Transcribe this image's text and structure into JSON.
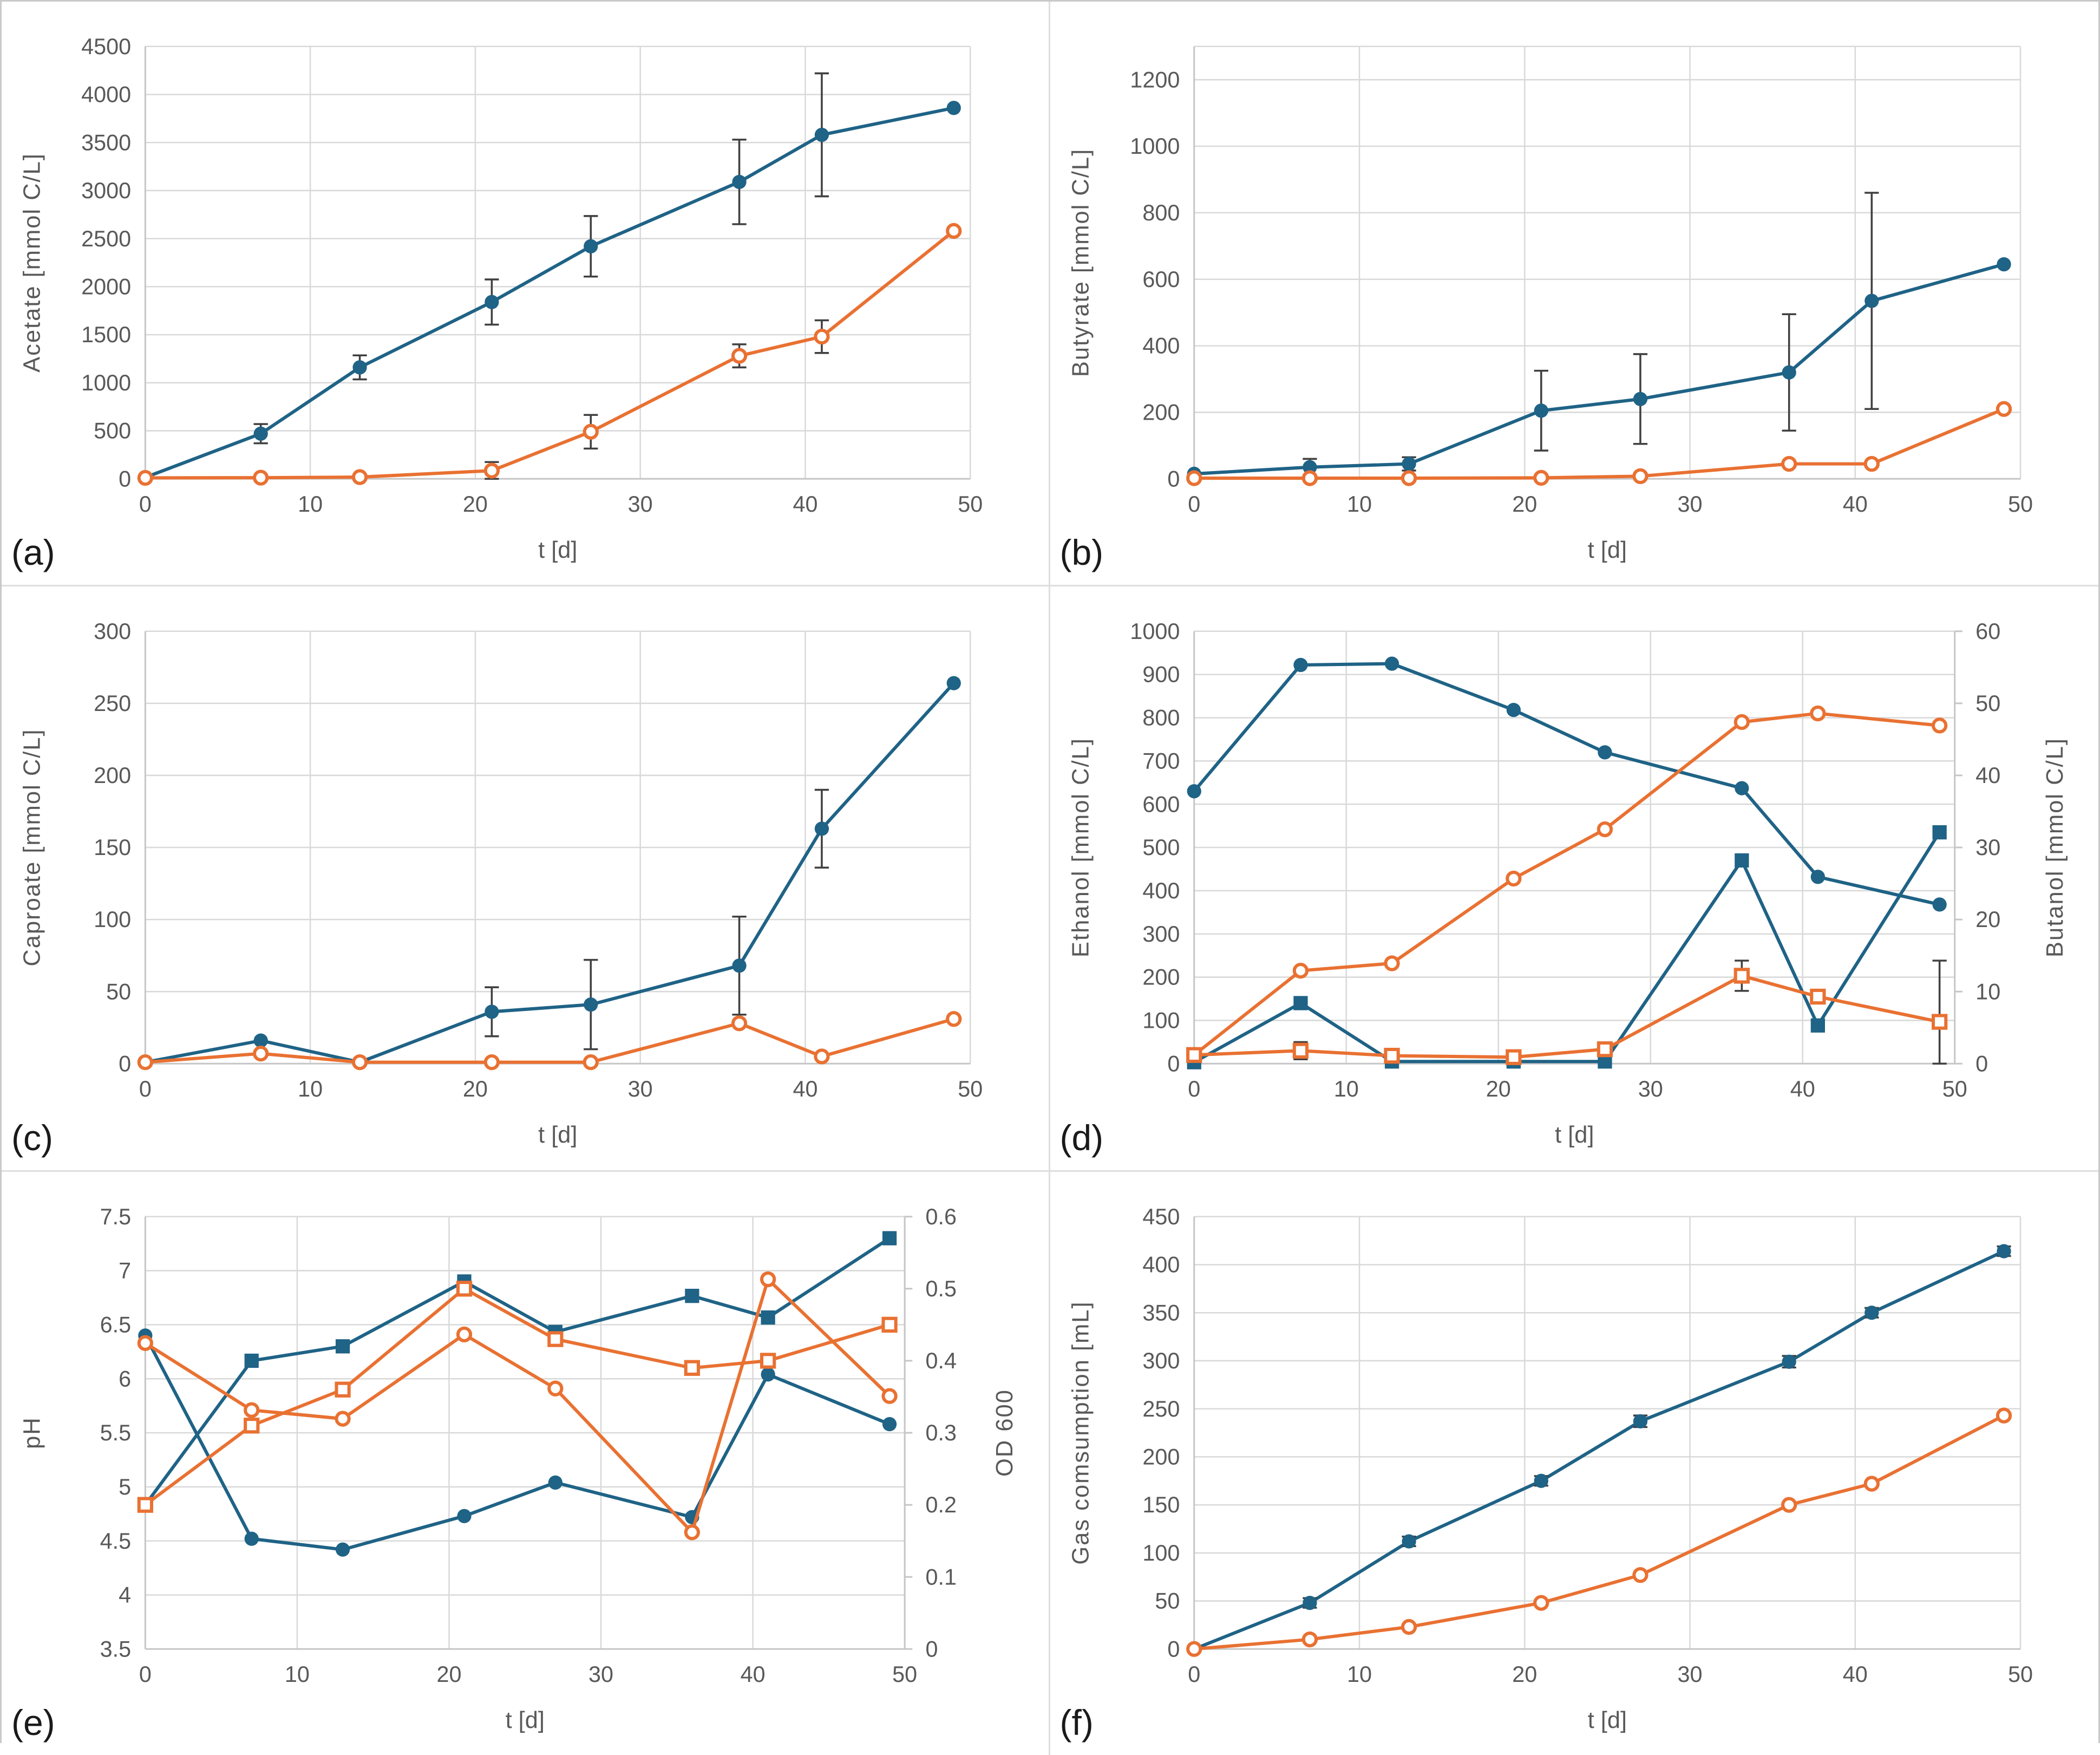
{
  "figure": {
    "background": "#FFFFFF",
    "colors": {
      "blue": "#1F6386",
      "orange": "#E97132",
      "marker_open_fill": "#FFFFFF",
      "error_bar": "#404040",
      "gridline": "#D9D9D9",
      "axis_line": "#C6C6C6",
      "tick_text": "#595959",
      "axis_title_text": "#595959",
      "panel_letter_text": "#1A1A1A"
    },
    "legend": "none",
    "grid": "on"
  },
  "chart_data": [
    {
      "id": "a",
      "panel_label": "(a)",
      "type": "line",
      "x_axis": {
        "label": "t [d]",
        "min": 0,
        "max": 50,
        "ticks": [
          0,
          10,
          20,
          30,
          40,
          50
        ]
      },
      "y_left": {
        "label": "Acetate [mmol C/L]",
        "min": 0,
        "plot_max": 4500,
        "ticks": [
          0,
          500,
          1000,
          1500,
          2000,
          2500,
          3000,
          3500,
          4000,
          4500
        ]
      },
      "y_right": null,
      "x_values": [
        0,
        7,
        13,
        21,
        27,
        36,
        41,
        49
      ],
      "series": [
        {
          "name": "acetate-blue",
          "axis": "left",
          "color": "blue",
          "marker": "circle",
          "marker_fill": "solid",
          "values": [
            15,
            470,
            1160,
            1840,
            2420,
            3090,
            3580,
            3860
          ],
          "errors": [
            null,
            100,
            125,
            235,
            315,
            440,
            640,
            null
          ]
        },
        {
          "name": "acetate-orange",
          "axis": "left",
          "color": "orange",
          "marker": "circle",
          "marker_fill": "open",
          "values": [
            10,
            12,
            18,
            85,
            490,
            1280,
            1480,
            2580
          ],
          "errors": [
            null,
            null,
            null,
            90,
            175,
            120,
            170,
            null
          ]
        }
      ]
    },
    {
      "id": "b",
      "panel_label": "(b)",
      "type": "line",
      "x_axis": {
        "label": "t [d]",
        "min": 0,
        "max": 50,
        "ticks": [
          0,
          10,
          20,
          30,
          40,
          50
        ]
      },
      "y_left": {
        "label": "Butyrate [mmol C/L]",
        "min": 0,
        "plot_max": 1300,
        "ticks": [
          0,
          200,
          400,
          600,
          800,
          1000,
          1200
        ]
      },
      "y_right": null,
      "x_values": [
        0,
        7,
        13,
        21,
        27,
        36,
        41,
        49
      ],
      "series": [
        {
          "name": "butyrate-blue",
          "axis": "left",
          "color": "blue",
          "marker": "circle",
          "marker_fill": "solid",
          "values": [
            15,
            35,
            45,
            205,
            240,
            320,
            535,
            645
          ],
          "errors": [
            null,
            25,
            20,
            120,
            135,
            175,
            325,
            null
          ]
        },
        {
          "name": "butyrate-orange",
          "axis": "left",
          "color": "orange",
          "marker": "circle",
          "marker_fill": "open",
          "values": [
            2,
            2,
            2,
            3,
            8,
            45,
            45,
            210
          ],
          "errors": null
        }
      ]
    },
    {
      "id": "c",
      "panel_label": "(c)",
      "type": "line",
      "x_axis": {
        "label": "t [d]",
        "min": 0,
        "max": 50,
        "ticks": [
          0,
          10,
          20,
          30,
          40,
          50
        ]
      },
      "y_left": {
        "label": "Caproate [mmol C/L]",
        "min": 0,
        "plot_max": 300,
        "ticks": [
          0,
          50,
          100,
          150,
          200,
          250,
          300
        ]
      },
      "y_right": null,
      "x_values": [
        0,
        7,
        13,
        21,
        27,
        36,
        41,
        49
      ],
      "series": [
        {
          "name": "caproate-blue",
          "axis": "left",
          "color": "blue",
          "marker": "circle",
          "marker_fill": "solid",
          "values": [
            1,
            16,
            1,
            36,
            41,
            68,
            163,
            264
          ],
          "errors": [
            null,
            null,
            null,
            17,
            31,
            34,
            27,
            null
          ]
        },
        {
          "name": "caproate-orange",
          "axis": "left",
          "color": "orange",
          "marker": "circle",
          "marker_fill": "open",
          "values": [
            1,
            7,
            1,
            1,
            1,
            28,
            5,
            31
          ],
          "errors": null
        }
      ]
    },
    {
      "id": "d",
      "panel_label": "(d)",
      "type": "line",
      "x_axis": {
        "label": "t [d]",
        "min": 0,
        "max": 50,
        "ticks": [
          0,
          10,
          20,
          30,
          40,
          50
        ]
      },
      "y_left": {
        "label": "Ethanol [mmol C/L]",
        "min": 0,
        "plot_max": 1000,
        "ticks": [
          0,
          100,
          200,
          300,
          400,
          500,
          600,
          700,
          800,
          900,
          1000
        ]
      },
      "y_right": {
        "label": "Butanol [mmol C/L]",
        "min": 0,
        "plot_max": 60,
        "ticks": [
          0,
          10,
          20,
          30,
          40,
          50,
          60
        ]
      },
      "x_values": [
        0,
        7,
        13,
        21,
        27,
        36,
        41,
        49
      ],
      "series": [
        {
          "name": "ethanol-blue",
          "axis": "left",
          "color": "blue",
          "marker": "circle",
          "marker_fill": "solid",
          "values": [
            630,
            922,
            925,
            818,
            720,
            637,
            432,
            368
          ],
          "errors": null
        },
        {
          "name": "ethanol-orange",
          "axis": "left",
          "color": "orange",
          "marker": "circle",
          "marker_fill": "open",
          "values": [
            20,
            215,
            232,
            428,
            542,
            790,
            810,
            782
          ],
          "errors": null
        },
        {
          "name": "butanol-blue",
          "axis": "right",
          "color": "blue",
          "marker": "square",
          "marker_fill": "solid",
          "values": [
            0.2,
            8.4,
            0.3,
            0.3,
            0.3,
            28.2,
            5.3,
            32.1
          ],
          "errors": null
        },
        {
          "name": "butanol-orange",
          "axis": "right",
          "color": "orange",
          "marker": "square",
          "marker_fill": "open",
          "values": [
            1.2,
            1.8,
            1.1,
            0.9,
            2.0,
            12.2,
            9.3,
            5.8
          ],
          "errors": [
            null,
            1.2,
            null,
            null,
            null,
            2.1,
            0.9,
            8.5
          ]
        }
      ]
    },
    {
      "id": "e",
      "panel_label": "(e)",
      "type": "line",
      "x_axis": {
        "label": "t [d]",
        "min": 0,
        "max": 50,
        "ticks": [
          0,
          10,
          20,
          30,
          40,
          50
        ]
      },
      "y_left": {
        "label": "pH",
        "min": 3.5,
        "plot_max": 7.5,
        "ticks": [
          3.5,
          4,
          4.5,
          5,
          5.5,
          6,
          6.5,
          7,
          7.5
        ]
      },
      "y_right": {
        "label": "OD 600",
        "min": 0,
        "plot_max": 0.6,
        "ticks": [
          0,
          0.1,
          0.2,
          0.3,
          0.4,
          0.5,
          0.6
        ]
      },
      "x_values": [
        0,
        7,
        13,
        21,
        27,
        36,
        41,
        49
      ],
      "series": [
        {
          "name": "ph-blue",
          "axis": "left",
          "color": "blue",
          "marker": "circle",
          "marker_fill": "solid",
          "values": [
            6.4,
            4.52,
            4.42,
            4.73,
            5.04,
            4.72,
            6.04,
            5.58
          ],
          "errors": null
        },
        {
          "name": "od600-blue",
          "axis": "right",
          "color": "blue",
          "marker": "square",
          "marker_fill": "solid",
          "values": [
            0.2,
            0.4,
            0.42,
            0.51,
            0.44,
            0.49,
            0.46,
            0.57
          ],
          "errors": null
        },
        {
          "name": "ph-orange",
          "axis": "left",
          "color": "orange",
          "marker": "circle",
          "marker_fill": "open",
          "values": [
            6.33,
            5.71,
            5.63,
            6.41,
            5.91,
            4.58,
            6.92,
            5.84
          ],
          "errors": null
        },
        {
          "name": "od600-orange",
          "axis": "right",
          "color": "orange",
          "marker": "square",
          "marker_fill": "open",
          "values": [
            0.2,
            0.31,
            0.36,
            0.5,
            0.43,
            0.39,
            0.4,
            0.45
          ],
          "errors": null
        }
      ]
    },
    {
      "id": "f",
      "panel_label": "(f)",
      "type": "line",
      "x_axis": {
        "label": "t [d]",
        "min": 0,
        "max": 50,
        "ticks": [
          0,
          10,
          20,
          30,
          40,
          50
        ]
      },
      "y_left": {
        "label": "Gas comsumption [mL]",
        "min": 0,
        "plot_max": 450,
        "ticks": [
          0,
          50,
          100,
          150,
          200,
          250,
          300,
          350,
          400,
          450
        ]
      },
      "y_right": null,
      "x_values": [
        0,
        7,
        13,
        21,
        27,
        36,
        41,
        49
      ],
      "series": [
        {
          "name": "gas-blue",
          "axis": "left",
          "color": "blue",
          "marker": "circle",
          "marker_fill": "solid",
          "values": [
            0,
            48,
            112,
            175,
            237,
            299,
            350,
            414
          ],
          "errors": [
            null,
            5,
            5,
            5,
            6,
            6,
            5,
            5
          ]
        },
        {
          "name": "gas-orange",
          "axis": "left",
          "color": "orange",
          "marker": "circle",
          "marker_fill": "open",
          "values": [
            0,
            10,
            23,
            48,
            77,
            150,
            172,
            243
          ],
          "errors": null
        }
      ]
    }
  ]
}
